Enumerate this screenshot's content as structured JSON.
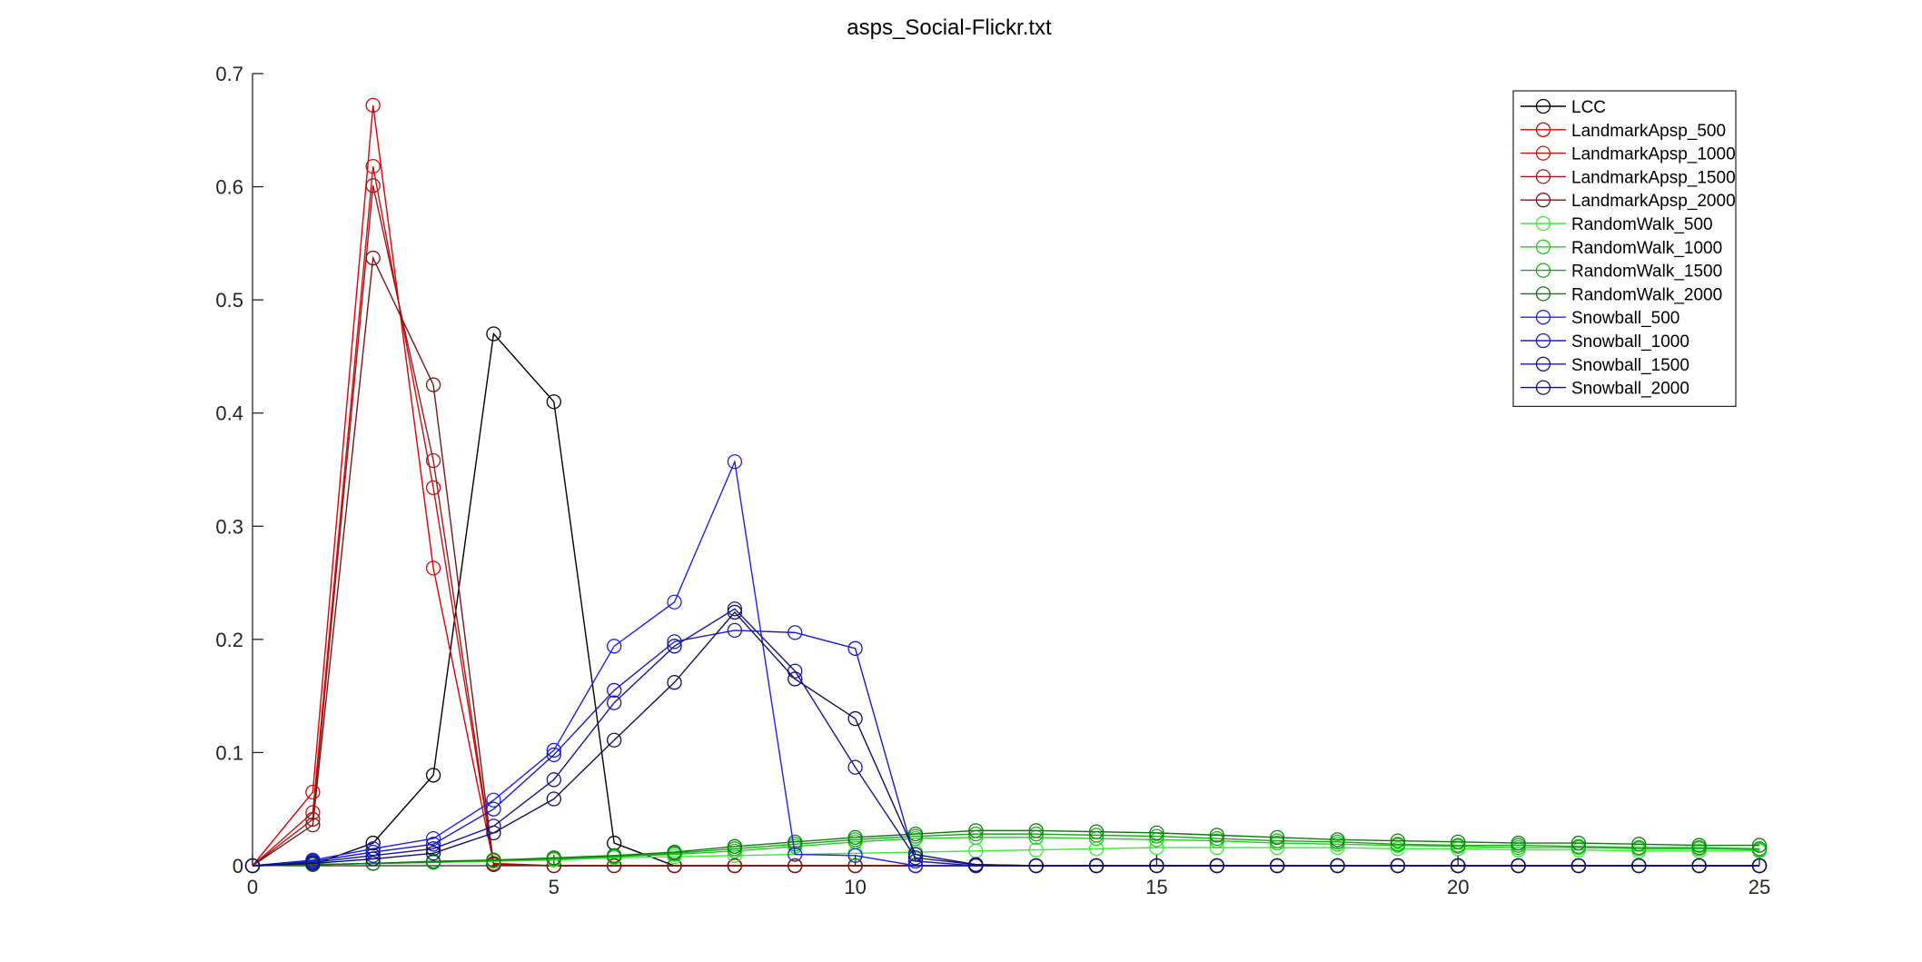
{
  "chart_data": {
    "type": "line",
    "title": "asps_Social-Flickr.txt",
    "xlabel": "",
    "ylabel": "",
    "xlim": [
      0,
      25
    ],
    "ylim": [
      0,
      0.7
    ],
    "xticks": [
      0,
      5,
      10,
      15,
      20,
      25
    ],
    "xtick_labels": [
      "0",
      "5",
      "10",
      "15",
      "20",
      "25"
    ],
    "yticks": [
      0,
      0.1,
      0.2,
      0.3,
      0.4,
      0.5,
      0.6,
      0.7
    ],
    "ytick_labels": [
      "0",
      "0.1",
      "0.2",
      "0.3",
      "0.4",
      "0.5",
      "0.6",
      "0.7"
    ],
    "grid": false,
    "legend_position": "top-right",
    "marker": "circle",
    "series": [
      {
        "name": "LCC",
        "color": "#000000",
        "x": [
          0,
          1,
          2,
          3,
          4,
          5,
          6,
          7,
          8,
          9,
          10,
          11,
          12,
          13,
          14,
          15,
          16,
          17,
          18,
          19,
          20,
          21,
          22,
          23,
          24,
          25
        ],
        "y": [
          0,
          0.001,
          0.02,
          0.08,
          0.47,
          0.41,
          0.02,
          0,
          0,
          0,
          0,
          0,
          0,
          0,
          0,
          0,
          0,
          0,
          0,
          0,
          0,
          0,
          0,
          0,
          0,
          0
        ]
      },
      {
        "name": "LandmarkApsp_500",
        "color": "#e00000",
        "x": [
          0,
          1,
          2,
          3,
          4,
          5,
          6,
          7,
          8,
          9,
          10,
          11,
          12,
          13,
          14,
          15,
          16,
          17,
          18,
          19,
          20,
          21,
          22,
          23,
          24,
          25
        ],
        "y": [
          0,
          0.065,
          0.672,
          0.263,
          0.002,
          0,
          0,
          0,
          0,
          0,
          0,
          0,
          0,
          0,
          0,
          0,
          0,
          0,
          0,
          0,
          0,
          0,
          0,
          0,
          0,
          0
        ]
      },
      {
        "name": "LandmarkApsp_1000",
        "color": "#cc1010",
        "x": [
          0,
          1,
          2,
          3,
          4,
          5,
          6,
          7,
          8,
          9,
          10,
          11,
          12,
          13,
          14,
          15,
          16,
          17,
          18,
          19,
          20,
          21,
          22,
          23,
          24,
          25
        ],
        "y": [
          0,
          0.047,
          0.618,
          0.334,
          0.001,
          0,
          0,
          0,
          0,
          0,
          0,
          0,
          0,
          0,
          0,
          0,
          0,
          0,
          0,
          0,
          0,
          0,
          0,
          0,
          0,
          0
        ]
      },
      {
        "name": "LandmarkApsp_1500",
        "color": "#a01818",
        "x": [
          0,
          1,
          2,
          3,
          4,
          5,
          6,
          7,
          8,
          9,
          10,
          11,
          12,
          13,
          14,
          15,
          16,
          17,
          18,
          19,
          20,
          21,
          22,
          23,
          24,
          25
        ],
        "y": [
          0,
          0.041,
          0.601,
          0.358,
          0.001,
          0,
          0,
          0,
          0,
          0,
          0,
          0,
          0,
          0,
          0,
          0,
          0,
          0,
          0,
          0,
          0,
          0,
          0,
          0,
          0,
          0
        ]
      },
      {
        "name": "LandmarkApsp_2000",
        "color": "#7a1616",
        "x": [
          0,
          1,
          2,
          3,
          4,
          5,
          6,
          7,
          8,
          9,
          10,
          11,
          12,
          13,
          14,
          15,
          16,
          17,
          18,
          19,
          20,
          21,
          22,
          23,
          24,
          25
        ],
        "y": [
          0,
          0.036,
          0.537,
          0.425,
          0.001,
          0,
          0,
          0,
          0,
          0,
          0,
          0,
          0,
          0,
          0,
          0,
          0,
          0,
          0,
          0,
          0,
          0,
          0,
          0,
          0,
          0
        ]
      },
      {
        "name": "RandomWalk_500",
        "color": "#33ee33",
        "x": [
          0,
          1,
          2,
          3,
          4,
          5,
          6,
          7,
          8,
          9,
          10,
          11,
          12,
          13,
          14,
          15,
          16,
          17,
          18,
          19,
          20,
          21,
          22,
          23,
          24,
          25
        ],
        "y": [
          0,
          0.001,
          0.002,
          0.003,
          0.004,
          0.005,
          0.007,
          0.008,
          0.009,
          0.01,
          0.011,
          0.012,
          0.013,
          0.014,
          0.015,
          0.016,
          0.016,
          0.016,
          0.016,
          0.015,
          0.015,
          0.014,
          0.014,
          0.013,
          0.013,
          0.013
        ]
      },
      {
        "name": "RandomWalk_1000",
        "color": "#22cc22",
        "x": [
          0,
          1,
          2,
          3,
          4,
          5,
          6,
          7,
          8,
          9,
          10,
          11,
          12,
          13,
          14,
          15,
          16,
          17,
          18,
          19,
          20,
          21,
          22,
          23,
          24,
          25
        ],
        "y": [
          0,
          0.001,
          0.002,
          0.003,
          0.004,
          0.006,
          0.008,
          0.01,
          0.013,
          0.017,
          0.021,
          0.024,
          0.025,
          0.025,
          0.024,
          0.023,
          0.022,
          0.02,
          0.019,
          0.018,
          0.017,
          0.016,
          0.016,
          0.015,
          0.015,
          0.014
        ]
      },
      {
        "name": "RandomWalk_1500",
        "color": "#16a816",
        "x": [
          0,
          1,
          2,
          3,
          4,
          5,
          6,
          7,
          8,
          9,
          10,
          11,
          12,
          13,
          14,
          15,
          16,
          17,
          18,
          19,
          20,
          21,
          22,
          23,
          24,
          25
        ],
        "y": [
          0,
          0.001,
          0.002,
          0.003,
          0.005,
          0.006,
          0.008,
          0.011,
          0.015,
          0.019,
          0.023,
          0.026,
          0.028,
          0.028,
          0.027,
          0.026,
          0.024,
          0.022,
          0.021,
          0.019,
          0.018,
          0.018,
          0.017,
          0.016,
          0.016,
          0.015
        ]
      },
      {
        "name": "RandomWalk_2000",
        "color": "#0e7a0e",
        "x": [
          0,
          1,
          2,
          3,
          4,
          5,
          6,
          7,
          8,
          9,
          10,
          11,
          12,
          13,
          14,
          15,
          16,
          17,
          18,
          19,
          20,
          21,
          22,
          23,
          24,
          25
        ],
        "y": [
          0,
          0.001,
          0.002,
          0.004,
          0.005,
          0.007,
          0.009,
          0.012,
          0.017,
          0.021,
          0.025,
          0.028,
          0.031,
          0.031,
          0.03,
          0.029,
          0.027,
          0.025,
          0.023,
          0.022,
          0.021,
          0.02,
          0.02,
          0.019,
          0.018,
          0.018
        ]
      },
      {
        "name": "Snowball_500",
        "color": "#2020ee",
        "x": [
          0,
          1,
          2,
          3,
          4,
          5,
          6,
          7,
          8,
          9,
          10,
          11,
          12,
          13,
          14,
          15,
          16,
          17,
          18,
          19,
          20,
          21,
          22,
          23,
          24,
          25
        ],
        "y": [
          0,
          0.005,
          0.015,
          0.024,
          0.058,
          0.102,
          0.194,
          0.233,
          0.357,
          0.01,
          0.009,
          0,
          0,
          0,
          0,
          0,
          0,
          0,
          0,
          0,
          0,
          0,
          0,
          0,
          0,
          0
        ]
      },
      {
        "name": "Snowball_1000",
        "color": "#1a1ac8",
        "x": [
          0,
          1,
          2,
          3,
          4,
          5,
          6,
          7,
          8,
          9,
          10,
          11,
          12,
          13,
          14,
          15,
          16,
          17,
          18,
          19,
          20,
          21,
          22,
          23,
          24,
          25
        ],
        "y": [
          0,
          0.004,
          0.012,
          0.019,
          0.05,
          0.098,
          0.155,
          0.198,
          0.208,
          0.206,
          0.192,
          0.004,
          0,
          0,
          0,
          0,
          0,
          0,
          0,
          0,
          0,
          0,
          0,
          0,
          0,
          0
        ]
      },
      {
        "name": "Snowball_1500",
        "color": "#16169a",
        "x": [
          0,
          1,
          2,
          3,
          4,
          5,
          6,
          7,
          8,
          9,
          10,
          11,
          12,
          13,
          14,
          15,
          16,
          17,
          18,
          19,
          20,
          21,
          22,
          23,
          24,
          25
        ],
        "y": [
          0,
          0.003,
          0.009,
          0.015,
          0.035,
          0.076,
          0.144,
          0.194,
          0.227,
          0.172,
          0.087,
          0.007,
          0.001,
          0,
          0,
          0,
          0,
          0,
          0,
          0,
          0,
          0,
          0,
          0,
          0,
          0
        ]
      },
      {
        "name": "Snowball_2000",
        "color": "#101060",
        "x": [
          0,
          1,
          2,
          3,
          4,
          5,
          6,
          7,
          8,
          9,
          10,
          11,
          12,
          13,
          14,
          15,
          16,
          17,
          18,
          19,
          20,
          21,
          22,
          23,
          24,
          25
        ],
        "y": [
          0,
          0.002,
          0.006,
          0.011,
          0.029,
          0.059,
          0.111,
          0.162,
          0.224,
          0.165,
          0.13,
          0.01,
          0.001,
          0,
          0,
          0,
          0,
          0,
          0,
          0,
          0,
          0,
          0,
          0,
          0,
          0
        ]
      }
    ]
  }
}
